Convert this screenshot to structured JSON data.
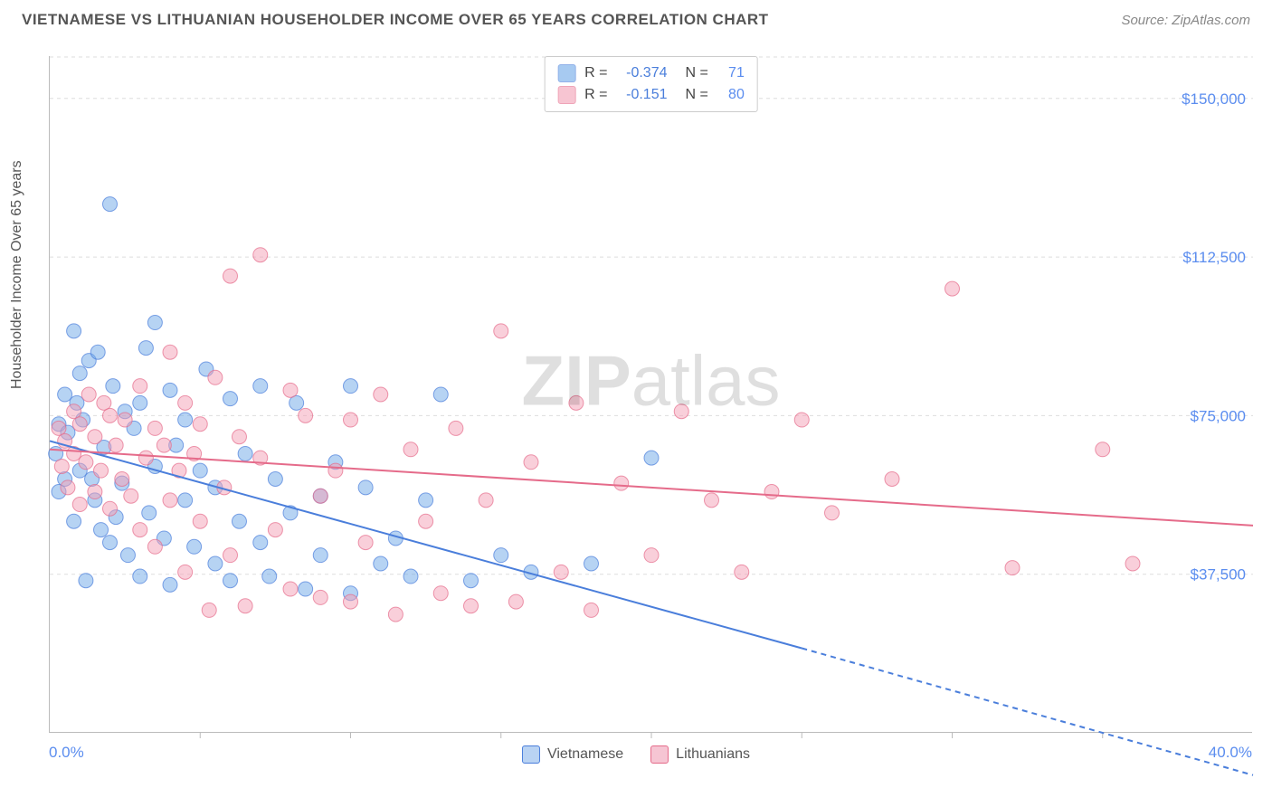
{
  "title": "VIETNAMESE VS LITHUANIAN HOUSEHOLDER INCOME OVER 65 YEARS CORRELATION CHART",
  "source_label": "Source: ZipAtlas.com",
  "y_axis_label": "Householder Income Over 65 years",
  "watermark": {
    "bold": "ZIP",
    "rest": "atlas"
  },
  "chart": {
    "type": "scatter",
    "background_color": "#ffffff",
    "grid_color": "#dddddd",
    "axis_color": "#bbbbbb",
    "label_color": "#5b8def",
    "xlim": [
      0,
      40
    ],
    "ylim": [
      0,
      160000
    ],
    "y_ticks": [
      37500,
      75000,
      112500,
      150000
    ],
    "y_tick_labels": [
      "$37,500",
      "$75,000",
      "$112,500",
      "$150,000"
    ],
    "x_min_label": "0.0%",
    "x_max_label": "40.0%",
    "x_minor_ticks": [
      5,
      10,
      15,
      20,
      25,
      30,
      35
    ],
    "marker_radius": 8,
    "marker_opacity": 0.5,
    "line_width": 2,
    "label_fontsize": 17,
    "series": [
      {
        "name": "Vietnamese",
        "color": "#6ea8e8",
        "stroke": "#4a7edb",
        "R": "-0.374",
        "N": "71",
        "trend": {
          "solid": {
            "x1": 0,
            "y1": 69000,
            "x2": 25,
            "y2": 20000
          },
          "dashed": {
            "x1": 25,
            "y1": 20000,
            "x2": 40,
            "y2": -10000
          }
        },
        "points": [
          [
            0.2,
            66000
          ],
          [
            0.3,
            57000
          ],
          [
            0.3,
            73000
          ],
          [
            0.5,
            60000
          ],
          [
            0.5,
            80000
          ],
          [
            0.6,
            71000
          ],
          [
            0.8,
            95000
          ],
          [
            0.8,
            50000
          ],
          [
            0.9,
            78000
          ],
          [
            1.0,
            85000
          ],
          [
            1.0,
            62000
          ],
          [
            1.1,
            74000
          ],
          [
            1.2,
            36000
          ],
          [
            1.3,
            88000
          ],
          [
            1.4,
            60000
          ],
          [
            1.5,
            55000
          ],
          [
            1.6,
            90000
          ],
          [
            1.7,
            48000
          ],
          [
            1.8,
            67500
          ],
          [
            2.0,
            45000
          ],
          [
            2.0,
            125000
          ],
          [
            2.1,
            82000
          ],
          [
            2.2,
            51000
          ],
          [
            2.4,
            59000
          ],
          [
            2.5,
            76000
          ],
          [
            2.6,
            42000
          ],
          [
            2.8,
            72000
          ],
          [
            3.0,
            78000
          ],
          [
            3.0,
            37000
          ],
          [
            3.2,
            91000
          ],
          [
            3.3,
            52000
          ],
          [
            3.5,
            63000
          ],
          [
            3.5,
            97000
          ],
          [
            3.8,
            46000
          ],
          [
            4.0,
            81000
          ],
          [
            4.0,
            35000
          ],
          [
            4.2,
            68000
          ],
          [
            4.5,
            55000
          ],
          [
            4.5,
            74000
          ],
          [
            4.8,
            44000
          ],
          [
            5.0,
            62000
          ],
          [
            5.2,
            86000
          ],
          [
            5.5,
            40000
          ],
          [
            5.5,
            58000
          ],
          [
            6.0,
            79000
          ],
          [
            6.0,
            36000
          ],
          [
            6.3,
            50000
          ],
          [
            6.5,
            66000
          ],
          [
            7.0,
            45000
          ],
          [
            7.0,
            82000
          ],
          [
            7.3,
            37000
          ],
          [
            7.5,
            60000
          ],
          [
            8.0,
            52000
          ],
          [
            8.2,
            78000
          ],
          [
            8.5,
            34000
          ],
          [
            9.0,
            56000
          ],
          [
            9.0,
            42000
          ],
          [
            9.5,
            64000
          ],
          [
            10.0,
            82000
          ],
          [
            10.0,
            33000
          ],
          [
            10.5,
            58000
          ],
          [
            11.0,
            40000
          ],
          [
            11.5,
            46000
          ],
          [
            12.0,
            37000
          ],
          [
            12.5,
            55000
          ],
          [
            13.0,
            80000
          ],
          [
            14.0,
            36000
          ],
          [
            15.0,
            42000
          ],
          [
            16.0,
            38000
          ],
          [
            18.0,
            40000
          ],
          [
            20.0,
            65000
          ]
        ]
      },
      {
        "name": "Lithuanians",
        "color": "#f3a0b5",
        "stroke": "#e56b8a",
        "R": "-0.151",
        "N": "80",
        "trend": {
          "solid": {
            "x1": 0,
            "y1": 67000,
            "x2": 40,
            "y2": 49000
          }
        },
        "points": [
          [
            0.3,
            72000
          ],
          [
            0.4,
            63000
          ],
          [
            0.5,
            69000
          ],
          [
            0.6,
            58000
          ],
          [
            0.8,
            76000
          ],
          [
            0.8,
            66000
          ],
          [
            1.0,
            54000
          ],
          [
            1.0,
            73000
          ],
          [
            1.2,
            64000
          ],
          [
            1.3,
            80000
          ],
          [
            1.5,
            57000
          ],
          [
            1.5,
            70000
          ],
          [
            1.7,
            62000
          ],
          [
            1.8,
            78000
          ],
          [
            2.0,
            53000
          ],
          [
            2.0,
            75000
          ],
          [
            2.2,
            68000
          ],
          [
            2.4,
            60000
          ],
          [
            2.5,
            74000
          ],
          [
            2.7,
            56000
          ],
          [
            3.0,
            82000
          ],
          [
            3.0,
            48000
          ],
          [
            3.2,
            65000
          ],
          [
            3.5,
            72000
          ],
          [
            3.5,
            44000
          ],
          [
            3.8,
            68000
          ],
          [
            4.0,
            90000
          ],
          [
            4.0,
            55000
          ],
          [
            4.3,
            62000
          ],
          [
            4.5,
            78000
          ],
          [
            4.5,
            38000
          ],
          [
            4.8,
            66000
          ],
          [
            5.0,
            73000
          ],
          [
            5.0,
            50000
          ],
          [
            5.3,
            29000
          ],
          [
            5.5,
            84000
          ],
          [
            5.8,
            58000
          ],
          [
            6.0,
            108000
          ],
          [
            6.0,
            42000
          ],
          [
            6.3,
            70000
          ],
          [
            6.5,
            30000
          ],
          [
            7.0,
            65000
          ],
          [
            7.0,
            113000
          ],
          [
            7.5,
            48000
          ],
          [
            8.0,
            81000
          ],
          [
            8.0,
            34000
          ],
          [
            8.5,
            75000
          ],
          [
            9.0,
            56000
          ],
          [
            9.0,
            32000
          ],
          [
            9.5,
            62000
          ],
          [
            10.0,
            74000
          ],
          [
            10.0,
            31000
          ],
          [
            10.5,
            45000
          ],
          [
            11.0,
            80000
          ],
          [
            11.5,
            28000
          ],
          [
            12.0,
            67000
          ],
          [
            12.5,
            50000
          ],
          [
            13.0,
            33000
          ],
          [
            13.5,
            72000
          ],
          [
            14.0,
            30000
          ],
          [
            14.5,
            55000
          ],
          [
            15.0,
            95000
          ],
          [
            15.5,
            31000
          ],
          [
            16.0,
            64000
          ],
          [
            17.0,
            38000
          ],
          [
            17.5,
            78000
          ],
          [
            18.0,
            29000
          ],
          [
            19.0,
            59000
          ],
          [
            20.0,
            42000
          ],
          [
            21.0,
            76000
          ],
          [
            22.0,
            55000
          ],
          [
            23.0,
            38000
          ],
          [
            24.0,
            57000
          ],
          [
            25.0,
            74000
          ],
          [
            26.0,
            52000
          ],
          [
            28.0,
            60000
          ],
          [
            30.0,
            105000
          ],
          [
            32.0,
            39000
          ],
          [
            35.0,
            67000
          ],
          [
            36.0,
            40000
          ]
        ]
      }
    ]
  },
  "legend_bottom": [
    {
      "label": "Vietnamese",
      "fill": "#b9d3f3",
      "stroke": "#4a7edb"
    },
    {
      "label": "Lithuanians",
      "fill": "#f6c5d3",
      "stroke": "#e56b8a"
    }
  ]
}
